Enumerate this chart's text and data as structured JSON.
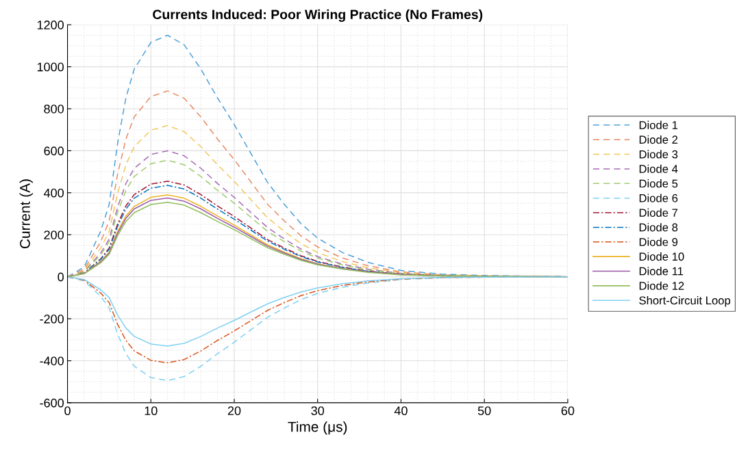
{
  "chart_data": {
    "type": "line",
    "title": "Currents Induced: Poor Wiring Practice (No Frames)",
    "xlabel": "Time (μs)",
    "ylabel": "Current (A)",
    "x": [
      0,
      2,
      4,
      5,
      6,
      7,
      8,
      10,
      12,
      14,
      16,
      18,
      20,
      22,
      24,
      26,
      28,
      30,
      33,
      36,
      40,
      45,
      50,
      60
    ],
    "xlim": [
      0,
      60
    ],
    "xticks": [
      0,
      10,
      20,
      30,
      40,
      50,
      60
    ],
    "ylim": [
      -600,
      1200
    ],
    "yticks": [
      -600,
      -400,
      -200,
      0,
      200,
      400,
      600,
      800,
      1000,
      1200
    ],
    "grid": true,
    "legend": "right",
    "marker": "none",
    "series": [
      {
        "name": "Diode 1",
        "color": "#4da0d8",
        "line_style": "dashed",
        "values": [
          0,
          46,
          219,
          345,
          633,
          851,
          989,
          1116,
          1150,
          1104,
          989,
          851,
          725,
          587,
          449,
          345,
          253,
          184,
          115,
          69,
          30,
          12,
          6,
          0
        ]
      },
      {
        "name": "Diode 2",
        "color": "#e98a62",
        "line_style": "dashed",
        "values": [
          0,
          35,
          168,
          266,
          487,
          655,
          761,
          858,
          885,
          850,
          761,
          655,
          558,
          451,
          345,
          266,
          195,
          142,
          89,
          53,
          23,
          9,
          4,
          0
        ]
      },
      {
        "name": "Diode 3",
        "color": "#f2c75c",
        "line_style": "dashed",
        "values": [
          0,
          29,
          137,
          216,
          396,
          533,
          619,
          698,
          720,
          691,
          619,
          533,
          454,
          367,
          281,
          216,
          158,
          115,
          72,
          43,
          19,
          7,
          4,
          0
        ]
      },
      {
        "name": "Diode 4",
        "color": "#a66bb3",
        "line_style": "dashed",
        "values": [
          0,
          24,
          114,
          180,
          330,
          444,
          516,
          582,
          600,
          576,
          516,
          444,
          378,
          306,
          234,
          180,
          132,
          96,
          60,
          36,
          16,
          6,
          3,
          0
        ]
      },
      {
        "name": "Diode 5",
        "color": "#9fcb6e",
        "line_style": "dashed",
        "values": [
          0,
          22,
          105,
          167,
          305,
          411,
          477,
          538,
          555,
          533,
          477,
          411,
          350,
          283,
          216,
          167,
          122,
          89,
          56,
          33,
          14,
          6,
          3,
          0
        ]
      },
      {
        "name": "Diode 6",
        "color": "#7fd0f2",
        "line_style": "dashed",
        "values": [
          0,
          -20,
          -94,
          -149,
          -272,
          -366,
          -426,
          -480,
          -495,
          -475,
          -426,
          -366,
          -312,
          -252,
          -193,
          -149,
          -109,
          -79,
          -50,
          -30,
          -13,
          -5,
          -2,
          0
        ]
      },
      {
        "name": "Diode 7",
        "color": "#a2142f",
        "line_style": "dashdot",
        "values": [
          0,
          18,
          86,
          137,
          250,
          337,
          391,
          441,
          455,
          437,
          391,
          337,
          287,
          232,
          177,
          137,
          100,
          73,
          46,
          27,
          12,
          5,
          null,
          null
        ]
      },
      {
        "name": "Diode 8",
        "color": "#0072bd",
        "line_style": "dashdot",
        "values": [
          0,
          17,
          83,
          131,
          239,
          322,
          374,
          422,
          435,
          418,
          374,
          322,
          274,
          222,
          170,
          131,
          96,
          70,
          44,
          26,
          11,
          4,
          2,
          0
        ]
      },
      {
        "name": "Diode 9",
        "color": "#d95319",
        "line_style": "dashdot",
        "values": [
          0,
          -16,
          -78,
          -123,
          -226,
          -303,
          -353,
          -398,
          -410,
          -394,
          -353,
          -303,
          -258,
          -209,
          -160,
          -123,
          -90,
          -66,
          -41,
          -25,
          -11,
          -4,
          -2,
          0
        ]
      },
      {
        "name": "Diode 10",
        "color": "#edb120",
        "line_style": "solid",
        "values": [
          0,
          16,
          74,
          117,
          215,
          289,
          335,
          378,
          390,
          374,
          335,
          289,
          246,
          199,
          152,
          117,
          86,
          62,
          39,
          23,
          10,
          4,
          2,
          0
        ]
      },
      {
        "name": "Diode 11",
        "color": "#9a5aa8",
        "line_style": "solid",
        "values": [
          0,
          15,
          71,
          113,
          206,
          278,
          323,
          364,
          375,
          360,
          323,
          278,
          236,
          191,
          146,
          113,
          83,
          60,
          38,
          23,
          10,
          4,
          2,
          0
        ]
      },
      {
        "name": "Diode 12",
        "color": "#8fbf5a",
        "line_style": "solid",
        "values": [
          0,
          14,
          67,
          107,
          195,
          263,
          305,
          344,
          355,
          341,
          305,
          263,
          224,
          181,
          138,
          107,
          78,
          57,
          36,
          21,
          9,
          4,
          2,
          0
        ]
      },
      {
        "name": "Short-Circuit Loop",
        "color": "#7fd0f2",
        "line_style": "solid",
        "values": [
          0,
          -13,
          -63,
          -99,
          -182,
          -244,
          -284,
          -320,
          -330,
          -317,
          -284,
          -244,
          -208,
          -168,
          -129,
          -99,
          -73,
          -53,
          -33,
          -20,
          -9,
          -3,
          -2,
          0
        ]
      }
    ]
  }
}
